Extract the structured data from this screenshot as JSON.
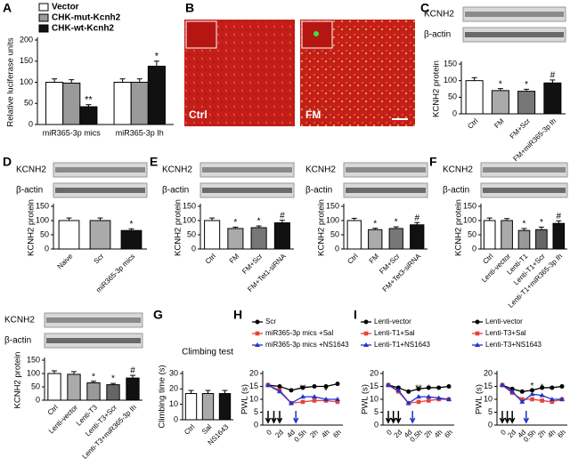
{
  "micrographs": {
    "panel": "B",
    "labels": [
      "Ctrl",
      "FM"
    ]
  },
  "chart_data": [
    {
      "panel": "A",
      "type": "bar",
      "ylabel": "Relative luciferase units",
      "categories": [
        "miR365-3p mics",
        "miR365-3p Ih"
      ],
      "series": [
        {
          "name": "Vector",
          "color": "#ffffff",
          "values": [
            100,
            100
          ],
          "errors": [
            8,
            8
          ]
        },
        {
          "name": "CHK-mut-Kcnh2",
          "color": "#9a9a9a",
          "values": [
            98,
            100
          ],
          "errors": [
            8,
            8
          ]
        },
        {
          "name": "CHK-wt-Kcnh2",
          "color": "#111111",
          "values": [
            42,
            138
          ],
          "errors": [
            5,
            12
          ],
          "sig": [
            "**",
            "*"
          ]
        }
      ],
      "ylim": [
        0,
        200
      ],
      "yticks": [
        0,
        50,
        100,
        150,
        200
      ]
    },
    {
      "panel": "C",
      "type": "bar",
      "blots": [
        "KCNH2",
        "β-actin"
      ],
      "ylabel": "KCNH2 protein",
      "categories": [
        "Ctrl",
        "FM",
        "FM+Scr",
        "FM+miR365-3p Ih"
      ],
      "values": [
        100,
        70,
        68,
        93
      ],
      "errors": [
        9,
        6,
        6,
        9
      ],
      "sig": [
        null,
        "*",
        "*",
        "#"
      ],
      "colors": [
        "#ffffff",
        "#aaaaaa",
        "#777777",
        "#111111"
      ],
      "ylim": [
        0,
        150
      ],
      "yticks": [
        0,
        50,
        100,
        150
      ]
    },
    {
      "panel": "D",
      "type": "bar",
      "blots": [
        "KCNH2",
        "β-actin"
      ],
      "ylabel": "KCNH2 protein",
      "categories": [
        "Naive",
        "Scr",
        "miR365-3p mics"
      ],
      "values": [
        100,
        100,
        65
      ],
      "errors": [
        9,
        9,
        6
      ],
      "sig": [
        null,
        null,
        "*"
      ],
      "colors": [
        "#ffffff",
        "#aaaaaa",
        "#111111"
      ],
      "ylim": [
        0,
        150
      ],
      "yticks": [
        0,
        50,
        100,
        150
      ]
    },
    {
      "panel": "E",
      "type": "bar",
      "blots": [
        "KCNH2",
        "β-actin"
      ],
      "ylabel": "KCNH2 protein",
      "categories": [
        "Ctrl",
        "FM",
        "FM+Scr",
        "FM+Tet1-siRNA"
      ],
      "values": [
        100,
        72,
        75,
        92
      ],
      "errors": [
        9,
        5,
        6,
        9
      ],
      "sig": [
        null,
        "*",
        "*",
        "#"
      ],
      "colors": [
        "#ffffff",
        "#aaaaaa",
        "#777777",
        "#111111"
      ],
      "ylim": [
        0,
        150
      ],
      "yticks": [
        0,
        50,
        100,
        150
      ]
    },
    {
      "type": "bar",
      "blots": [
        "KCNH2",
        "β-actin"
      ],
      "ylabel": "KCNH2 protein",
      "categories": [
        "Ctrl",
        "FM",
        "FM+Scr",
        "FM+Tet3-siRNA"
      ],
      "values": [
        100,
        68,
        72,
        85
      ],
      "errors": [
        8,
        5,
        6,
        8
      ],
      "sig": [
        null,
        "*",
        "*",
        "#"
      ],
      "colors": [
        "#ffffff",
        "#aaaaaa",
        "#777777",
        "#111111"
      ],
      "ylim": [
        0,
        150
      ],
      "yticks": [
        0,
        50,
        100,
        150
      ]
    },
    {
      "panel": "F",
      "type": "bar",
      "blots": [
        "KCNH2",
        "β-actin"
      ],
      "ylabel": "KCNH2 protein",
      "categories": [
        "Ctrl",
        "Lenti-vector",
        "Lenti-T1",
        "Lenti-T1+Scr",
        "Lenti-T1+miR365-3p Ih"
      ],
      "values": [
        100,
        100,
        65,
        68,
        90
      ],
      "errors": [
        9,
        7,
        7,
        9,
        9
      ],
      "sig": [
        null,
        null,
        "*",
        "*",
        "#"
      ],
      "colors": [
        "#ffffff",
        "#aaaaaa",
        "#999999",
        "#666666",
        "#111111"
      ],
      "ylim": [
        0,
        150
      ],
      "yticks": [
        0,
        50,
        100,
        150
      ]
    },
    {
      "type": "bar",
      "blots": [
        "KCNH2",
        "β-actin"
      ],
      "ylabel": "KCNH2 protein",
      "categories": [
        "Ctrl",
        "Lenti-vector",
        "Lenti-T3",
        "Lenti-T3+Scr",
        "Lenti-T3+miR365-3p Ih"
      ],
      "values": [
        100,
        97,
        65,
        58,
        83
      ],
      "errors": [
        10,
        10,
        6,
        5,
        10
      ],
      "sig": [
        null,
        null,
        "*",
        "*",
        "#"
      ],
      "colors": [
        "#ffffff",
        "#aaaaaa",
        "#999999",
        "#666666",
        "#111111"
      ],
      "ylim": [
        0,
        150
      ],
      "yticks": [
        0,
        50,
        100,
        150
      ]
    },
    {
      "panel": "G",
      "type": "bar",
      "title": "Climbing test",
      "ylabel": "Climbing time (s)",
      "categories": [
        "Ctrl",
        "Sal",
        "NS1643"
      ],
      "values": [
        17,
        17,
        17
      ],
      "errors": [
        2,
        2,
        2
      ],
      "colors": [
        "#ffffff",
        "#aaaaaa",
        "#111111"
      ],
      "ylim": [
        0,
        30
      ],
      "yticks": [
        0,
        10,
        20,
        30
      ]
    },
    {
      "panel": "H",
      "type": "line",
      "ylabel": "PWL (s)",
      "categories": [
        "0",
        "2d",
        "4d",
        "0.5h",
        "2h",
        "4h",
        "6h"
      ],
      "series": [
        {
          "name": "Scr",
          "color": "#000000",
          "values": [
            15.5,
            15,
            13.5,
            14.5,
            15,
            15,
            16
          ]
        },
        {
          "name": "miR365-3p mics +Sal",
          "color": "#e8413c",
          "values": [
            15.5,
            13.5,
            8.5,
            9,
            9.5,
            9.5,
            9
          ]
        },
        {
          "name": "miR365-3p mics +NS1643",
          "color": "#2233cc",
          "values": [
            15.5,
            13,
            8.5,
            11,
            11,
            10,
            10
          ]
        }
      ],
      "annotations": [
        "**",
        "*",
        "*"
      ],
      "ylim": [
        0,
        20
      ],
      "yticks": [
        0,
        5,
        10,
        15,
        20
      ]
    },
    {
      "panel": "I",
      "type": "line",
      "ylabel": "PWL (s)",
      "categories": [
        "0",
        "2d",
        "4d",
        "0.5h",
        "2h",
        "4h",
        "6h"
      ],
      "series": [
        {
          "name": "Lenti-vector",
          "color": "#000000",
          "values": [
            15.5,
            14.5,
            13,
            14,
            14.5,
            14.5,
            15
          ]
        },
        {
          "name": "Lenti-T1+Sal",
          "color": "#e8413c",
          "values": [
            15.5,
            13,
            8.5,
            9,
            9.5,
            10,
            10
          ]
        },
        {
          "name": "Lenti-T1+NS1643",
          "color": "#2233cc",
          "values": [
            15.5,
            13.5,
            8.5,
            11,
            11,
            10.5,
            10
          ]
        }
      ],
      "annotations": [
        "**",
        "*",
        "*"
      ],
      "ylim": [
        0,
        20
      ],
      "yticks": [
        0,
        5,
        10,
        15,
        20
      ]
    },
    {
      "type": "line",
      "ylabel": "PWL (s)",
      "categories": [
        "0",
        "2d",
        "4d",
        "0.5h",
        "2h",
        "4h",
        "6h"
      ],
      "series": [
        {
          "name": "Lenti-vector",
          "color": "#000000",
          "values": [
            15.5,
            14,
            13,
            13.5,
            14.5,
            14.5,
            15
          ]
        },
        {
          "name": "Lenti-T3+Sal",
          "color": "#e8413c",
          "values": [
            15.5,
            12.5,
            10,
            10,
            9.5,
            9,
            10
          ]
        },
        {
          "name": "Lenti-T3+NS1643",
          "color": "#2233cc",
          "values": [
            15.5,
            13,
            9,
            12,
            11.5,
            10,
            10
          ]
        }
      ],
      "annotations": [
        "*",
        "*"
      ],
      "ylim": [
        0,
        20
      ],
      "yticks": [
        0,
        5,
        10,
        15,
        20
      ]
    }
  ]
}
